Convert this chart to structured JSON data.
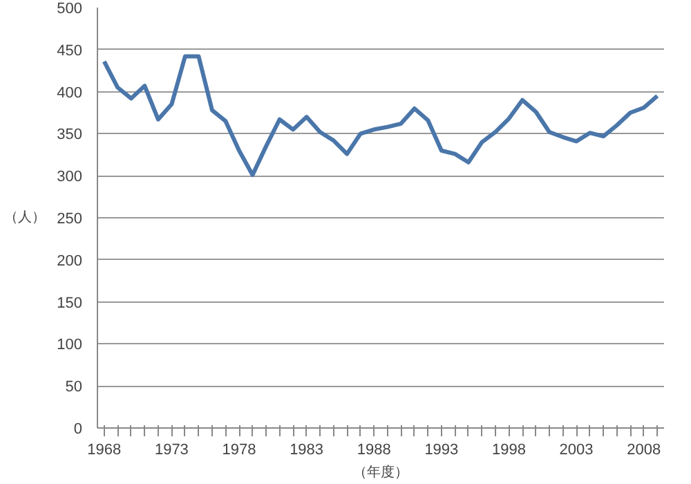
{
  "chart_data": {
    "type": "line",
    "xlabel": "（年度）",
    "ylabel": "（人）",
    "categories": [
      "1968",
      null,
      null,
      null,
      null,
      "1973",
      null,
      null,
      null,
      null,
      "1978",
      null,
      null,
      null,
      null,
      "1983",
      null,
      null,
      null,
      null,
      "1988",
      null,
      null,
      null,
      null,
      "1993",
      null,
      null,
      null,
      null,
      "1998",
      null,
      null,
      null,
      null,
      "2003",
      null,
      null,
      null,
      null,
      "2008",
      null
    ],
    "series": [
      {
        "color": "#4a76aa",
        "values": [
          436,
          405,
          392,
          407,
          367,
          385,
          442,
          442,
          378,
          365,
          330,
          301,
          335,
          367,
          355,
          370,
          352,
          342,
          326,
          350,
          355,
          358,
          362,
          380,
          366,
          330,
          326,
          316,
          340,
          352,
          368,
          390,
          376,
          352,
          346,
          341,
          351,
          347,
          360,
          375,
          381,
          395
        ]
      }
    ],
    "ylim": [
      0,
      500
    ],
    "yticks": [
      0,
      50,
      100,
      150,
      200,
      250,
      300,
      350,
      400,
      450,
      500
    ],
    "grid": "y",
    "marker": "none",
    "line_style": "solid"
  }
}
